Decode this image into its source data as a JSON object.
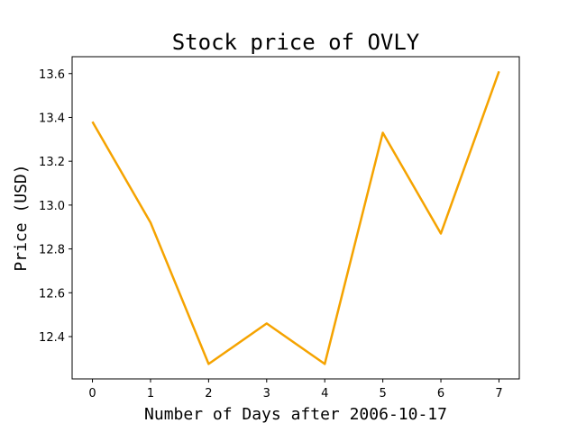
{
  "chart_data": {
    "type": "line",
    "title": "Stock price of OVLY",
    "xlabel": "Number of Days after 2006-10-17",
    "ylabel": "Price (USD)",
    "x": [
      0,
      1,
      2,
      3,
      4,
      5,
      6,
      7
    ],
    "series": [
      {
        "values": [
          13.38,
          12.92,
          12.275,
          12.46,
          12.275,
          13.33,
          12.87,
          13.61
        ],
        "color": "#f5a300"
      }
    ],
    "xticks": [
      0,
      1,
      2,
      3,
      4,
      5,
      6,
      7
    ],
    "yticks": [
      12.4,
      12.6,
      12.8,
      13.0,
      13.2,
      13.4,
      13.6
    ],
    "xlim": [
      -0.35,
      7.35
    ],
    "ylim": [
      12.207,
      13.677
    ],
    "grid": false,
    "legend": "none"
  }
}
